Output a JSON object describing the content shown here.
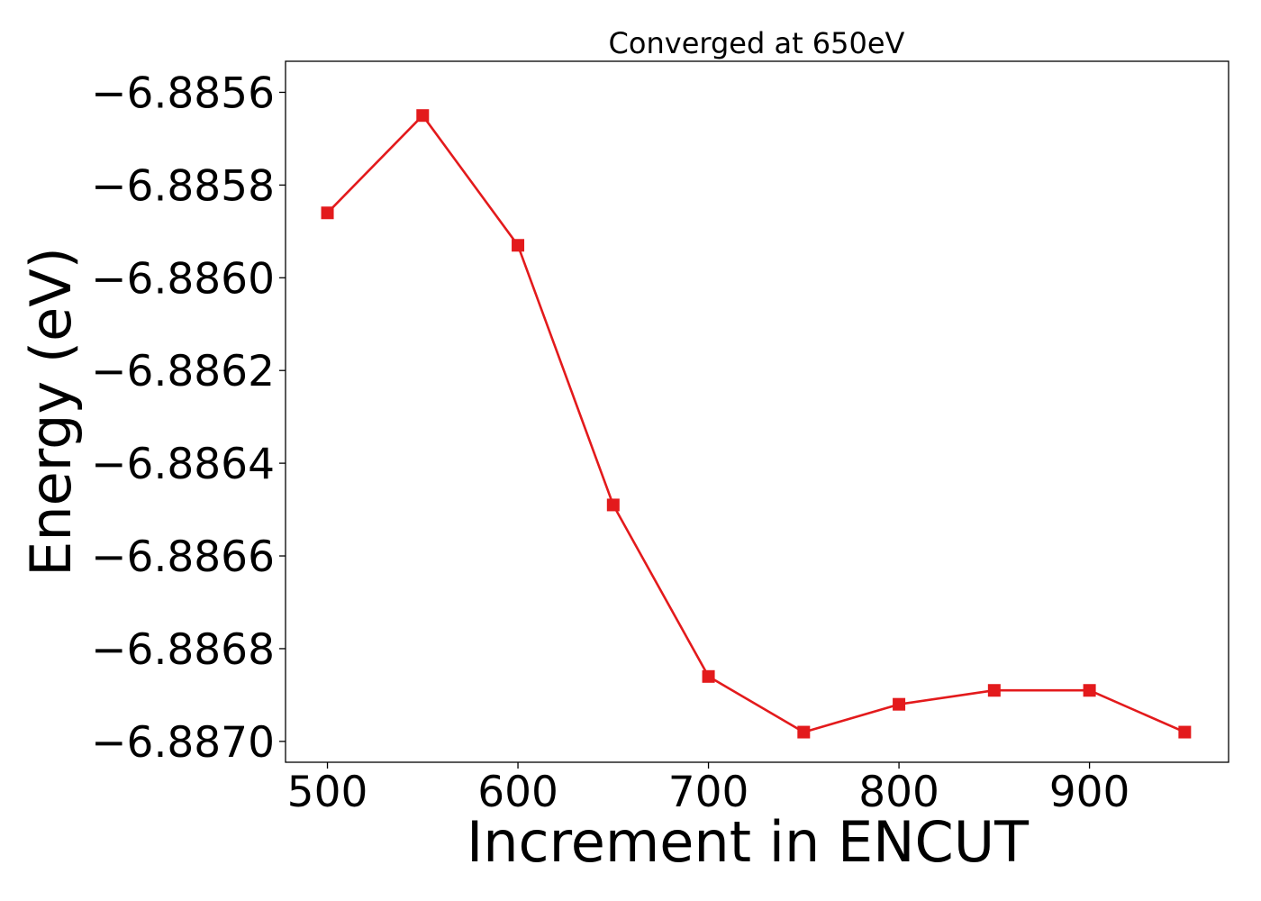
{
  "chart_data": {
    "type": "line",
    "title": "Converged at 650eV",
    "xlabel": "Increment in ENCUT",
    "ylabel": "Energy (eV)",
    "x": [
      500,
      550,
      600,
      650,
      700,
      750,
      800,
      850,
      900,
      950
    ],
    "series": [
      {
        "values": [
          -6.88586,
          -6.88565,
          -6.88593,
          -6.88649,
          -6.88686,
          -6.88698,
          -6.88692,
          -6.88689,
          -6.88689,
          -6.88698
        ],
        "color": "#e31a1c",
        "marker": "square"
      }
    ],
    "xlim": [
      478,
      973
    ],
    "ylim": [
      -6.887045,
      -6.885533
    ],
    "x_ticks": [
      500,
      600,
      700,
      800,
      900
    ],
    "x_tick_labels": [
      "500",
      "600",
      "700",
      "800",
      "900"
    ],
    "y_ticks": [
      -6.8856,
      -6.8858,
      -6.886,
      -6.8862,
      -6.8864,
      -6.8866,
      -6.8868,
      -6.887
    ],
    "y_tick_labels": [
      "−6.8856",
      "−6.8858",
      "−6.8860",
      "−6.8862",
      "−6.8864",
      "−6.8866",
      "−6.8868",
      "−6.8870"
    ],
    "grid": false,
    "legend": "none"
  }
}
